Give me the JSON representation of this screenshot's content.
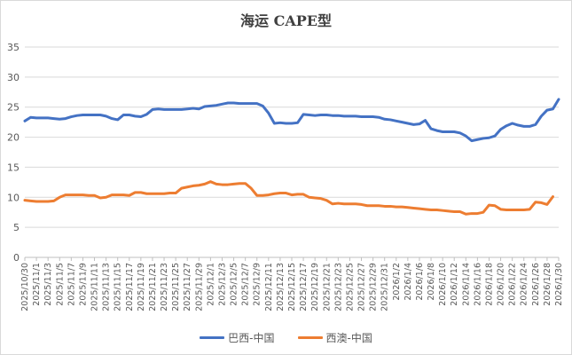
{
  "chart_data": {
    "type": "line",
    "title": "海运 CAPE型",
    "xlabel": "",
    "ylabel": "",
    "ylim": [
      0,
      35
    ],
    "yticks": [
      0,
      5,
      10,
      15,
      20,
      25,
      30,
      35
    ],
    "grid": true,
    "legend_position": "bottom",
    "x_tick_labels": [
      "2025/10/30",
      "2025/11/1",
      "2025/11/3",
      "2025/11/5",
      "2025/11/7",
      "2025/11/9",
      "2025/11/11",
      "2025/11/13",
      "2025/11/15",
      "2025/11/17",
      "2025/11/19",
      "2025/11/21",
      "2025/11/23",
      "2025/11/25",
      "2025/11/27",
      "2025/11/29",
      "2025/12/1",
      "2025/12/3",
      "2025/12/5",
      "2025/12/7",
      "2025/12/9",
      "2025/12/11",
      "2025/12/13",
      "2025/12/15",
      "2025/12/17",
      "2025/12/19",
      "2025/12/21",
      "2025/12/23",
      "2025/12/25",
      "2025/12/27",
      "2025/12/29",
      "2025/12/31",
      "2026/1/2",
      "2026/1/4",
      "2026/1/6",
      "2026/1/8",
      "2026/1/10",
      "2026/1/12",
      "2026/1/14",
      "2026/1/16",
      "2026/1/18",
      "2026/1/20",
      "2026/1/22",
      "2026/1/24",
      "2026/1/26",
      "2026/1/28",
      "2026/1/30"
    ],
    "series": [
      {
        "name": "巴西-中国",
        "color": "#4472C4",
        "points": [
          [
            0,
            22.7
          ],
          [
            1,
            23.3
          ],
          [
            2,
            23.2
          ],
          [
            3,
            23.2
          ],
          [
            4,
            23.2
          ],
          [
            5,
            23.1
          ],
          [
            6,
            23.0
          ],
          [
            7,
            23.1
          ],
          [
            8,
            23.4
          ],
          [
            9,
            23.6
          ],
          [
            10,
            23.7
          ],
          [
            11,
            23.7
          ],
          [
            12,
            23.7
          ],
          [
            13,
            23.7
          ],
          [
            14,
            23.5
          ],
          [
            15,
            23.1
          ],
          [
            16,
            22.9
          ],
          [
            17,
            23.7
          ],
          [
            18,
            23.7
          ],
          [
            19,
            23.5
          ],
          [
            20,
            23.4
          ],
          [
            21,
            23.8
          ],
          [
            22,
            24.6
          ],
          [
            23,
            24.7
          ],
          [
            24,
            24.6
          ],
          [
            25,
            24.6
          ],
          [
            26,
            24.6
          ],
          [
            27,
            24.6
          ],
          [
            28,
            24.7
          ],
          [
            29,
            24.8
          ],
          [
            30,
            24.7
          ],
          [
            31,
            25.1
          ],
          [
            32,
            25.2
          ],
          [
            33,
            25.3
          ],
          [
            34,
            25.5
          ],
          [
            35,
            25.7
          ],
          [
            36,
            25.7
          ],
          [
            37,
            25.6
          ],
          [
            38,
            25.6
          ],
          [
            39,
            25.6
          ],
          [
            40,
            25.6
          ],
          [
            41,
            25.2
          ],
          [
            42,
            24.0
          ],
          [
            43,
            22.3
          ],
          [
            44,
            22.4
          ],
          [
            45,
            22.3
          ],
          [
            46,
            22.3
          ],
          [
            47,
            22.4
          ],
          [
            48,
            23.8
          ],
          [
            49,
            23.7
          ],
          [
            50,
            23.6
          ],
          [
            51,
            23.7
          ],
          [
            52,
            23.7
          ],
          [
            53,
            23.6
          ],
          [
            54,
            23.6
          ],
          [
            55,
            23.5
          ],
          [
            56,
            23.5
          ],
          [
            57,
            23.5
          ],
          [
            58,
            23.4
          ],
          [
            59,
            23.4
          ],
          [
            60,
            23.4
          ],
          [
            61,
            23.3
          ],
          [
            62,
            23.0
          ],
          [
            63,
            22.9
          ],
          [
            64,
            22.7
          ],
          [
            65,
            22.5
          ],
          [
            66,
            22.3
          ],
          [
            67,
            22.1
          ],
          [
            68,
            22.2
          ],
          [
            69,
            22.8
          ],
          [
            70,
            21.4
          ],
          [
            71,
            21.1
          ],
          [
            72,
            20.9
          ],
          [
            73,
            20.9
          ],
          [
            74,
            20.9
          ],
          [
            75,
            20.7
          ],
          [
            76,
            20.2
          ],
          [
            77,
            19.4
          ],
          [
            78,
            19.6
          ],
          [
            79,
            19.8
          ],
          [
            80,
            19.9
          ],
          [
            81,
            20.2
          ],
          [
            82,
            21.3
          ],
          [
            83,
            21.9
          ],
          [
            84,
            22.3
          ],
          [
            85,
            22.0
          ],
          [
            86,
            21.8
          ],
          [
            87,
            21.8
          ],
          [
            88,
            22.1
          ],
          [
            89,
            23.5
          ],
          [
            90,
            24.5
          ],
          [
            91,
            24.7
          ],
          [
            92,
            26.3
          ]
        ]
      },
      {
        "name": "西澳-中国",
        "color": "#ED7D31",
        "points": [
          [
            0,
            9.5
          ],
          [
            1,
            9.4
          ],
          [
            2,
            9.3
          ],
          [
            3,
            9.3
          ],
          [
            4,
            9.3
          ],
          [
            5,
            9.4
          ],
          [
            6,
            10.0
          ],
          [
            7,
            10.4
          ],
          [
            8,
            10.4
          ],
          [
            9,
            10.4
          ],
          [
            10,
            10.4
          ],
          [
            11,
            10.3
          ],
          [
            12,
            10.3
          ],
          [
            13,
            9.9
          ],
          [
            14,
            10.0
          ],
          [
            15,
            10.4
          ],
          [
            16,
            10.4
          ],
          [
            17,
            10.4
          ],
          [
            18,
            10.3
          ],
          [
            19,
            10.8
          ],
          [
            20,
            10.8
          ],
          [
            21,
            10.6
          ],
          [
            22,
            10.6
          ],
          [
            23,
            10.6
          ],
          [
            24,
            10.6
          ],
          [
            25,
            10.7
          ],
          [
            26,
            10.7
          ],
          [
            27,
            11.5
          ],
          [
            28,
            11.7
          ],
          [
            29,
            11.9
          ],
          [
            30,
            12.0
          ],
          [
            31,
            12.2
          ],
          [
            32,
            12.6
          ],
          [
            33,
            12.2
          ],
          [
            34,
            12.1
          ],
          [
            35,
            12.1
          ],
          [
            36,
            12.2
          ],
          [
            37,
            12.3
          ],
          [
            38,
            12.3
          ],
          [
            39,
            11.5
          ],
          [
            40,
            10.3
          ],
          [
            41,
            10.3
          ],
          [
            42,
            10.4
          ],
          [
            43,
            10.6
          ],
          [
            44,
            10.7
          ],
          [
            45,
            10.7
          ],
          [
            46,
            10.4
          ],
          [
            47,
            10.5
          ],
          [
            48,
            10.5
          ],
          [
            49,
            10.0
          ],
          [
            50,
            9.9
          ],
          [
            51,
            9.8
          ],
          [
            52,
            9.5
          ],
          [
            53,
            8.9
          ],
          [
            54,
            9.0
          ],
          [
            55,
            8.9
          ],
          [
            56,
            8.9
          ],
          [
            57,
            8.9
          ],
          [
            58,
            8.8
          ],
          [
            59,
            8.6
          ],
          [
            60,
            8.6
          ],
          [
            61,
            8.6
          ],
          [
            62,
            8.5
          ],
          [
            63,
            8.5
          ],
          [
            64,
            8.4
          ],
          [
            65,
            8.4
          ],
          [
            66,
            8.3
          ],
          [
            67,
            8.2
          ],
          [
            68,
            8.1
          ],
          [
            69,
            8.0
          ],
          [
            70,
            7.9
          ],
          [
            71,
            7.9
          ],
          [
            72,
            7.8
          ],
          [
            73,
            7.7
          ],
          [
            74,
            7.6
          ],
          [
            75,
            7.6
          ],
          [
            76,
            7.2
          ],
          [
            77,
            7.3
          ],
          [
            78,
            7.3
          ],
          [
            79,
            7.5
          ],
          [
            80,
            8.7
          ],
          [
            81,
            8.6
          ],
          [
            82,
            8.0
          ],
          [
            83,
            7.9
          ],
          [
            84,
            7.9
          ],
          [
            85,
            7.9
          ],
          [
            86,
            7.9
          ],
          [
            87,
            8.0
          ],
          [
            88,
            9.2
          ],
          [
            89,
            9.1
          ],
          [
            90,
            8.8
          ],
          [
            91,
            10.1
          ]
        ]
      }
    ]
  },
  "legend": {
    "items": [
      {
        "label": "巴西-中国",
        "color": "#4472C4"
      },
      {
        "label": "西澳-中国",
        "color": "#ED7D31"
      }
    ]
  }
}
